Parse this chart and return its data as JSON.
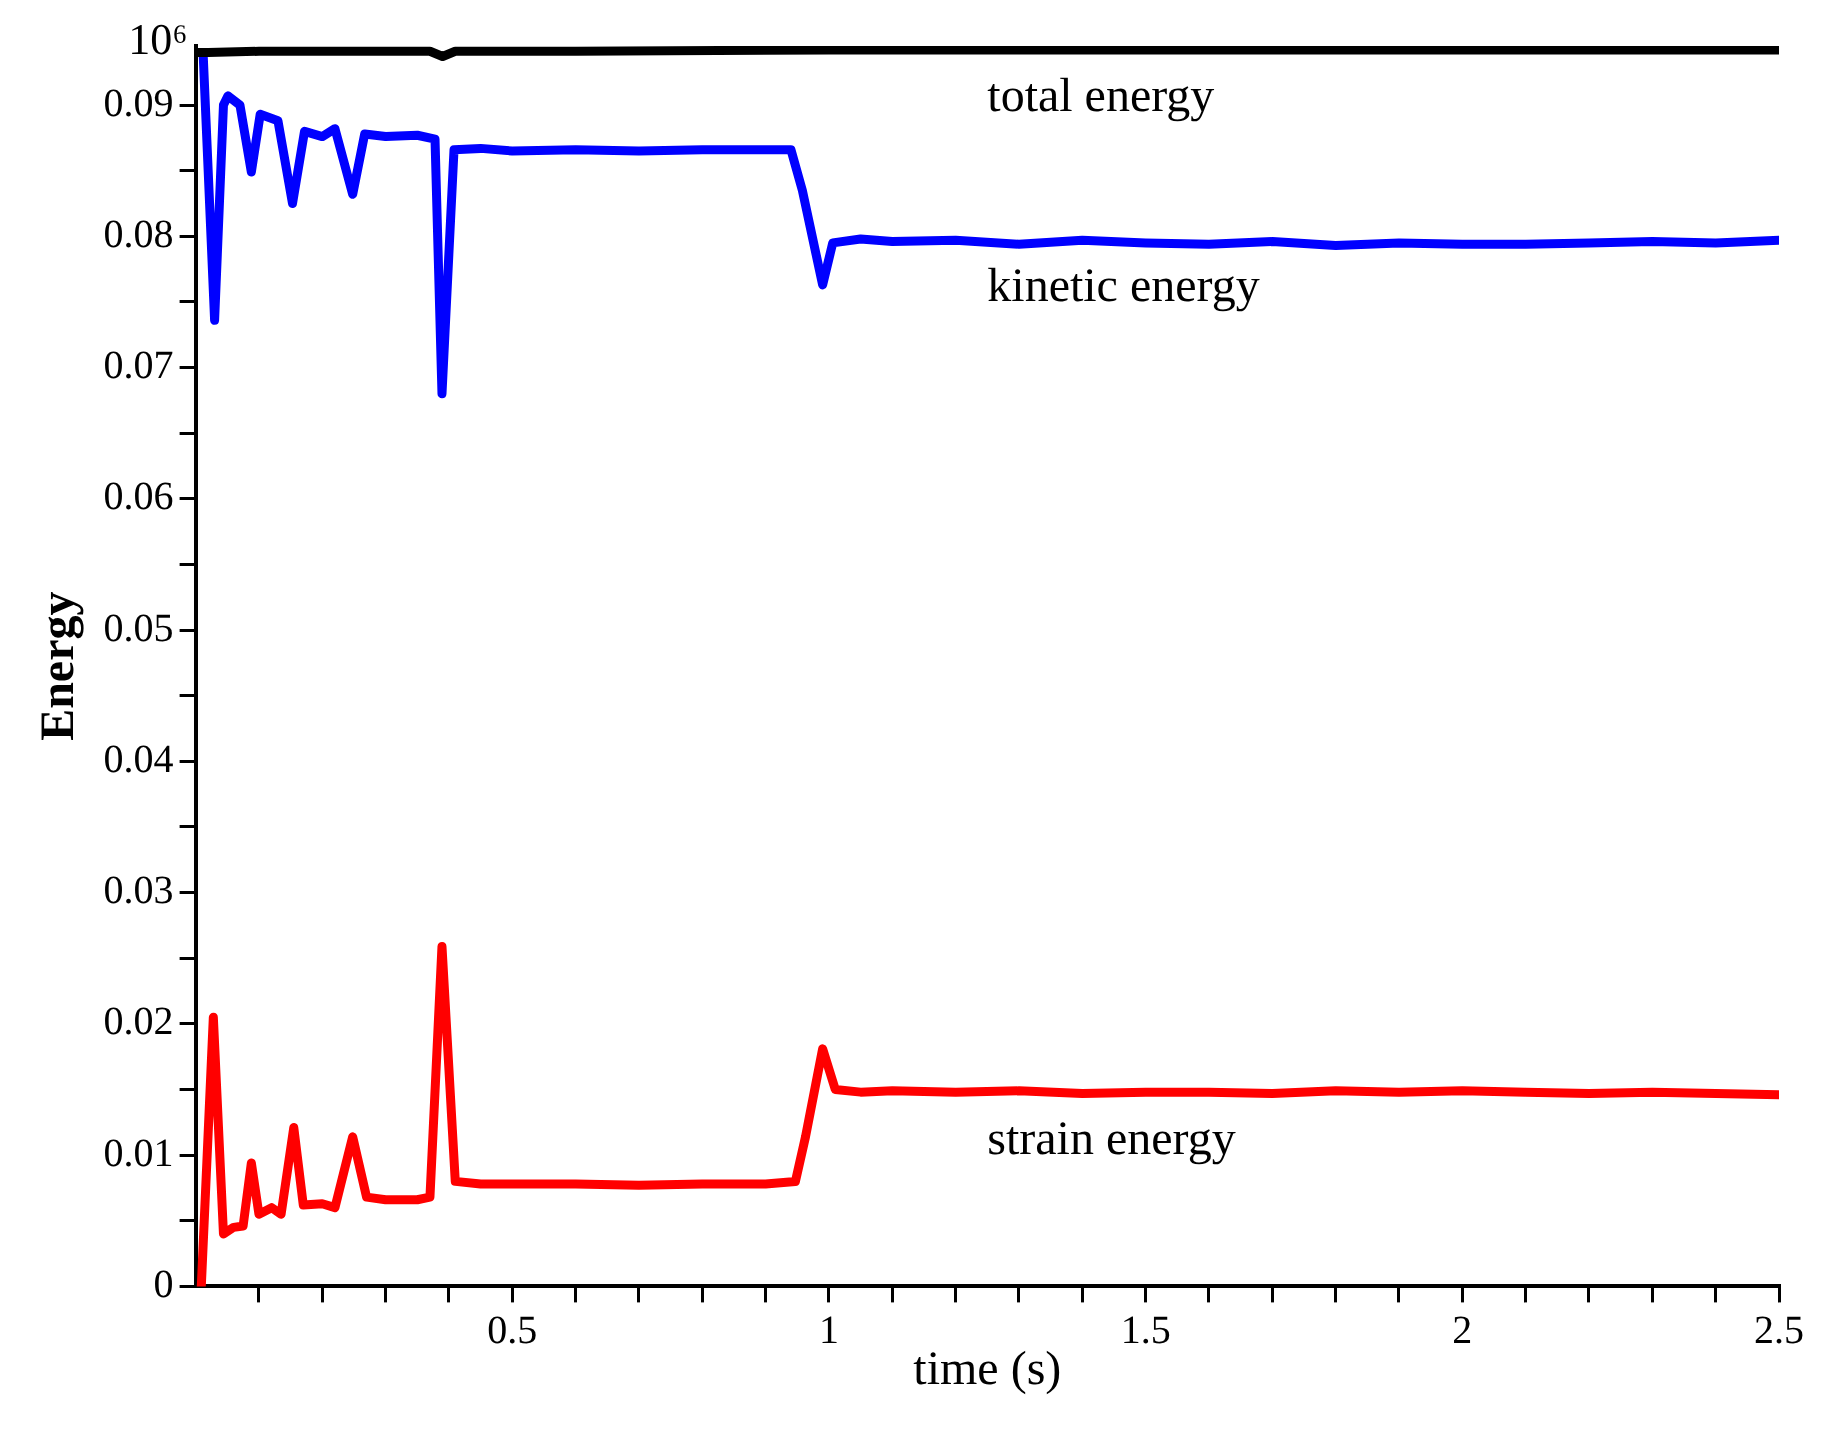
{
  "chart_data": {
    "type": "line",
    "xlabel": "time (s)",
    "ylabel": "Energy",
    "annotations": [
      "10⁶"
    ],
    "xlim": [
      0,
      2.5
    ],
    "ylim": [
      0,
      0.0945
    ],
    "xticks": [
      {
        "value": 0.1,
        "label": null
      },
      {
        "value": 0.2,
        "label": null
      },
      {
        "value": 0.3,
        "label": null
      },
      {
        "value": 0.4,
        "label": null
      },
      0.5,
      {
        "value": 0.6,
        "label": null
      },
      {
        "value": 0.7,
        "label": null
      },
      {
        "value": 0.8,
        "label": null
      },
      {
        "value": 0.9,
        "label": null
      },
      1,
      {
        "value": 1.1,
        "label": null
      },
      {
        "value": 1.2,
        "label": null
      },
      {
        "value": 1.3,
        "label": null
      },
      {
        "value": 1.4,
        "label": null
      },
      1.5,
      {
        "value": 1.6,
        "label": null
      },
      {
        "value": 1.7,
        "label": null
      },
      {
        "value": 1.8,
        "label": null
      },
      {
        "value": 1.9,
        "label": null
      },
      2,
      {
        "value": 2.1,
        "label": null
      },
      {
        "value": 2.2,
        "label": null
      },
      {
        "value": 2.3,
        "label": null
      },
      {
        "value": 2.4,
        "label": null
      },
      2.5
    ],
    "yticks": [
      0,
      {
        "value": 0.005,
        "label": null
      },
      0.01,
      {
        "value": 0.015,
        "label": null
      },
      0.02,
      {
        "value": 0.025,
        "label": null
      },
      0.03,
      {
        "value": 0.035,
        "label": null
      },
      0.04,
      {
        "value": 0.045,
        "label": null
      },
      0.05,
      {
        "value": 0.055,
        "label": null
      },
      0.06,
      {
        "value": 0.065,
        "label": null
      },
      0.07,
      {
        "value": 0.075,
        "label": null
      },
      0.08,
      {
        "value": 0.085,
        "label": null
      },
      0.09
    ],
    "grid": false,
    "legend": false,
    "marker": "none",
    "line_style": "solid",
    "series": [
      {
        "name": "total energy",
        "color": "#000000",
        "x": [
          0.0,
          0.02,
          0.1,
          0.2,
          0.3,
          0.37,
          0.39,
          0.41,
          0.6,
          1.0,
          1.5,
          2.0,
          2.5
        ],
        "values": [
          0.094,
          0.094,
          0.0941,
          0.0941,
          0.0941,
          0.0941,
          0.0937,
          0.0941,
          0.0941,
          0.0942,
          0.0942,
          0.0942,
          0.0942
        ]
      },
      {
        "name": "kinetic energy",
        "color": "#0000ff",
        "x": [
          0.012,
          0.03,
          0.044,
          0.051,
          0.07,
          0.088,
          0.102,
          0.13,
          0.153,
          0.172,
          0.2,
          0.22,
          0.248,
          0.267,
          0.3,
          0.35,
          0.378,
          0.389,
          0.408,
          0.45,
          0.5,
          0.6,
          0.7,
          0.8,
          0.9,
          0.94,
          0.958,
          0.99,
          1.006,
          1.05,
          1.1,
          1.2,
          1.3,
          1.4,
          1.5,
          1.6,
          1.7,
          1.8,
          1.9,
          2.0,
          2.1,
          2.2,
          2.3,
          2.4,
          2.5
        ],
        "values": [
          0.0938,
          0.0736,
          0.09,
          0.0907,
          0.09,
          0.0849,
          0.0893,
          0.0888,
          0.0825,
          0.088,
          0.0876,
          0.0882,
          0.0832,
          0.0878,
          0.0876,
          0.0877,
          0.0874,
          0.068,
          0.0866,
          0.0867,
          0.0865,
          0.0866,
          0.0865,
          0.0866,
          0.0866,
          0.0866,
          0.0835,
          0.0763,
          0.0795,
          0.0798,
          0.0796,
          0.0797,
          0.0794,
          0.0797,
          0.0795,
          0.0794,
          0.0796,
          0.0793,
          0.0795,
          0.0794,
          0.0794,
          0.0795,
          0.0796,
          0.0795,
          0.0797
        ]
      },
      {
        "name": "strain energy",
        "color": "#ff0000",
        "x": [
          0.009,
          0.028,
          0.044,
          0.06,
          0.075,
          0.088,
          0.1,
          0.12,
          0.135,
          0.155,
          0.17,
          0.2,
          0.22,
          0.248,
          0.27,
          0.3,
          0.35,
          0.37,
          0.389,
          0.41,
          0.45,
          0.5,
          0.6,
          0.7,
          0.8,
          0.9,
          0.947,
          0.963,
          0.99,
          1.01,
          1.05,
          1.1,
          1.2,
          1.3,
          1.4,
          1.5,
          1.6,
          1.7,
          1.8,
          1.9,
          2.0,
          2.1,
          2.2,
          2.3,
          2.4,
          2.5
        ],
        "values": [
          0,
          0.0205,
          0.004,
          0.0045,
          0.0046,
          0.0094,
          0.0055,
          0.006,
          0.0055,
          0.0121,
          0.0062,
          0.0063,
          0.006,
          0.0114,
          0.0068,
          0.0066,
          0.0066,
          0.0068,
          0.0259,
          0.008,
          0.0078,
          0.0078,
          0.0078,
          0.0077,
          0.0078,
          0.0078,
          0.008,
          0.0114,
          0.0181,
          0.015,
          0.0148,
          0.0149,
          0.0148,
          0.0149,
          0.0147,
          0.0148,
          0.0148,
          0.0147,
          0.0149,
          0.0148,
          0.0149,
          0.0148,
          0.0147,
          0.0148,
          0.0147,
          0.0146
        ]
      }
    ]
  }
}
